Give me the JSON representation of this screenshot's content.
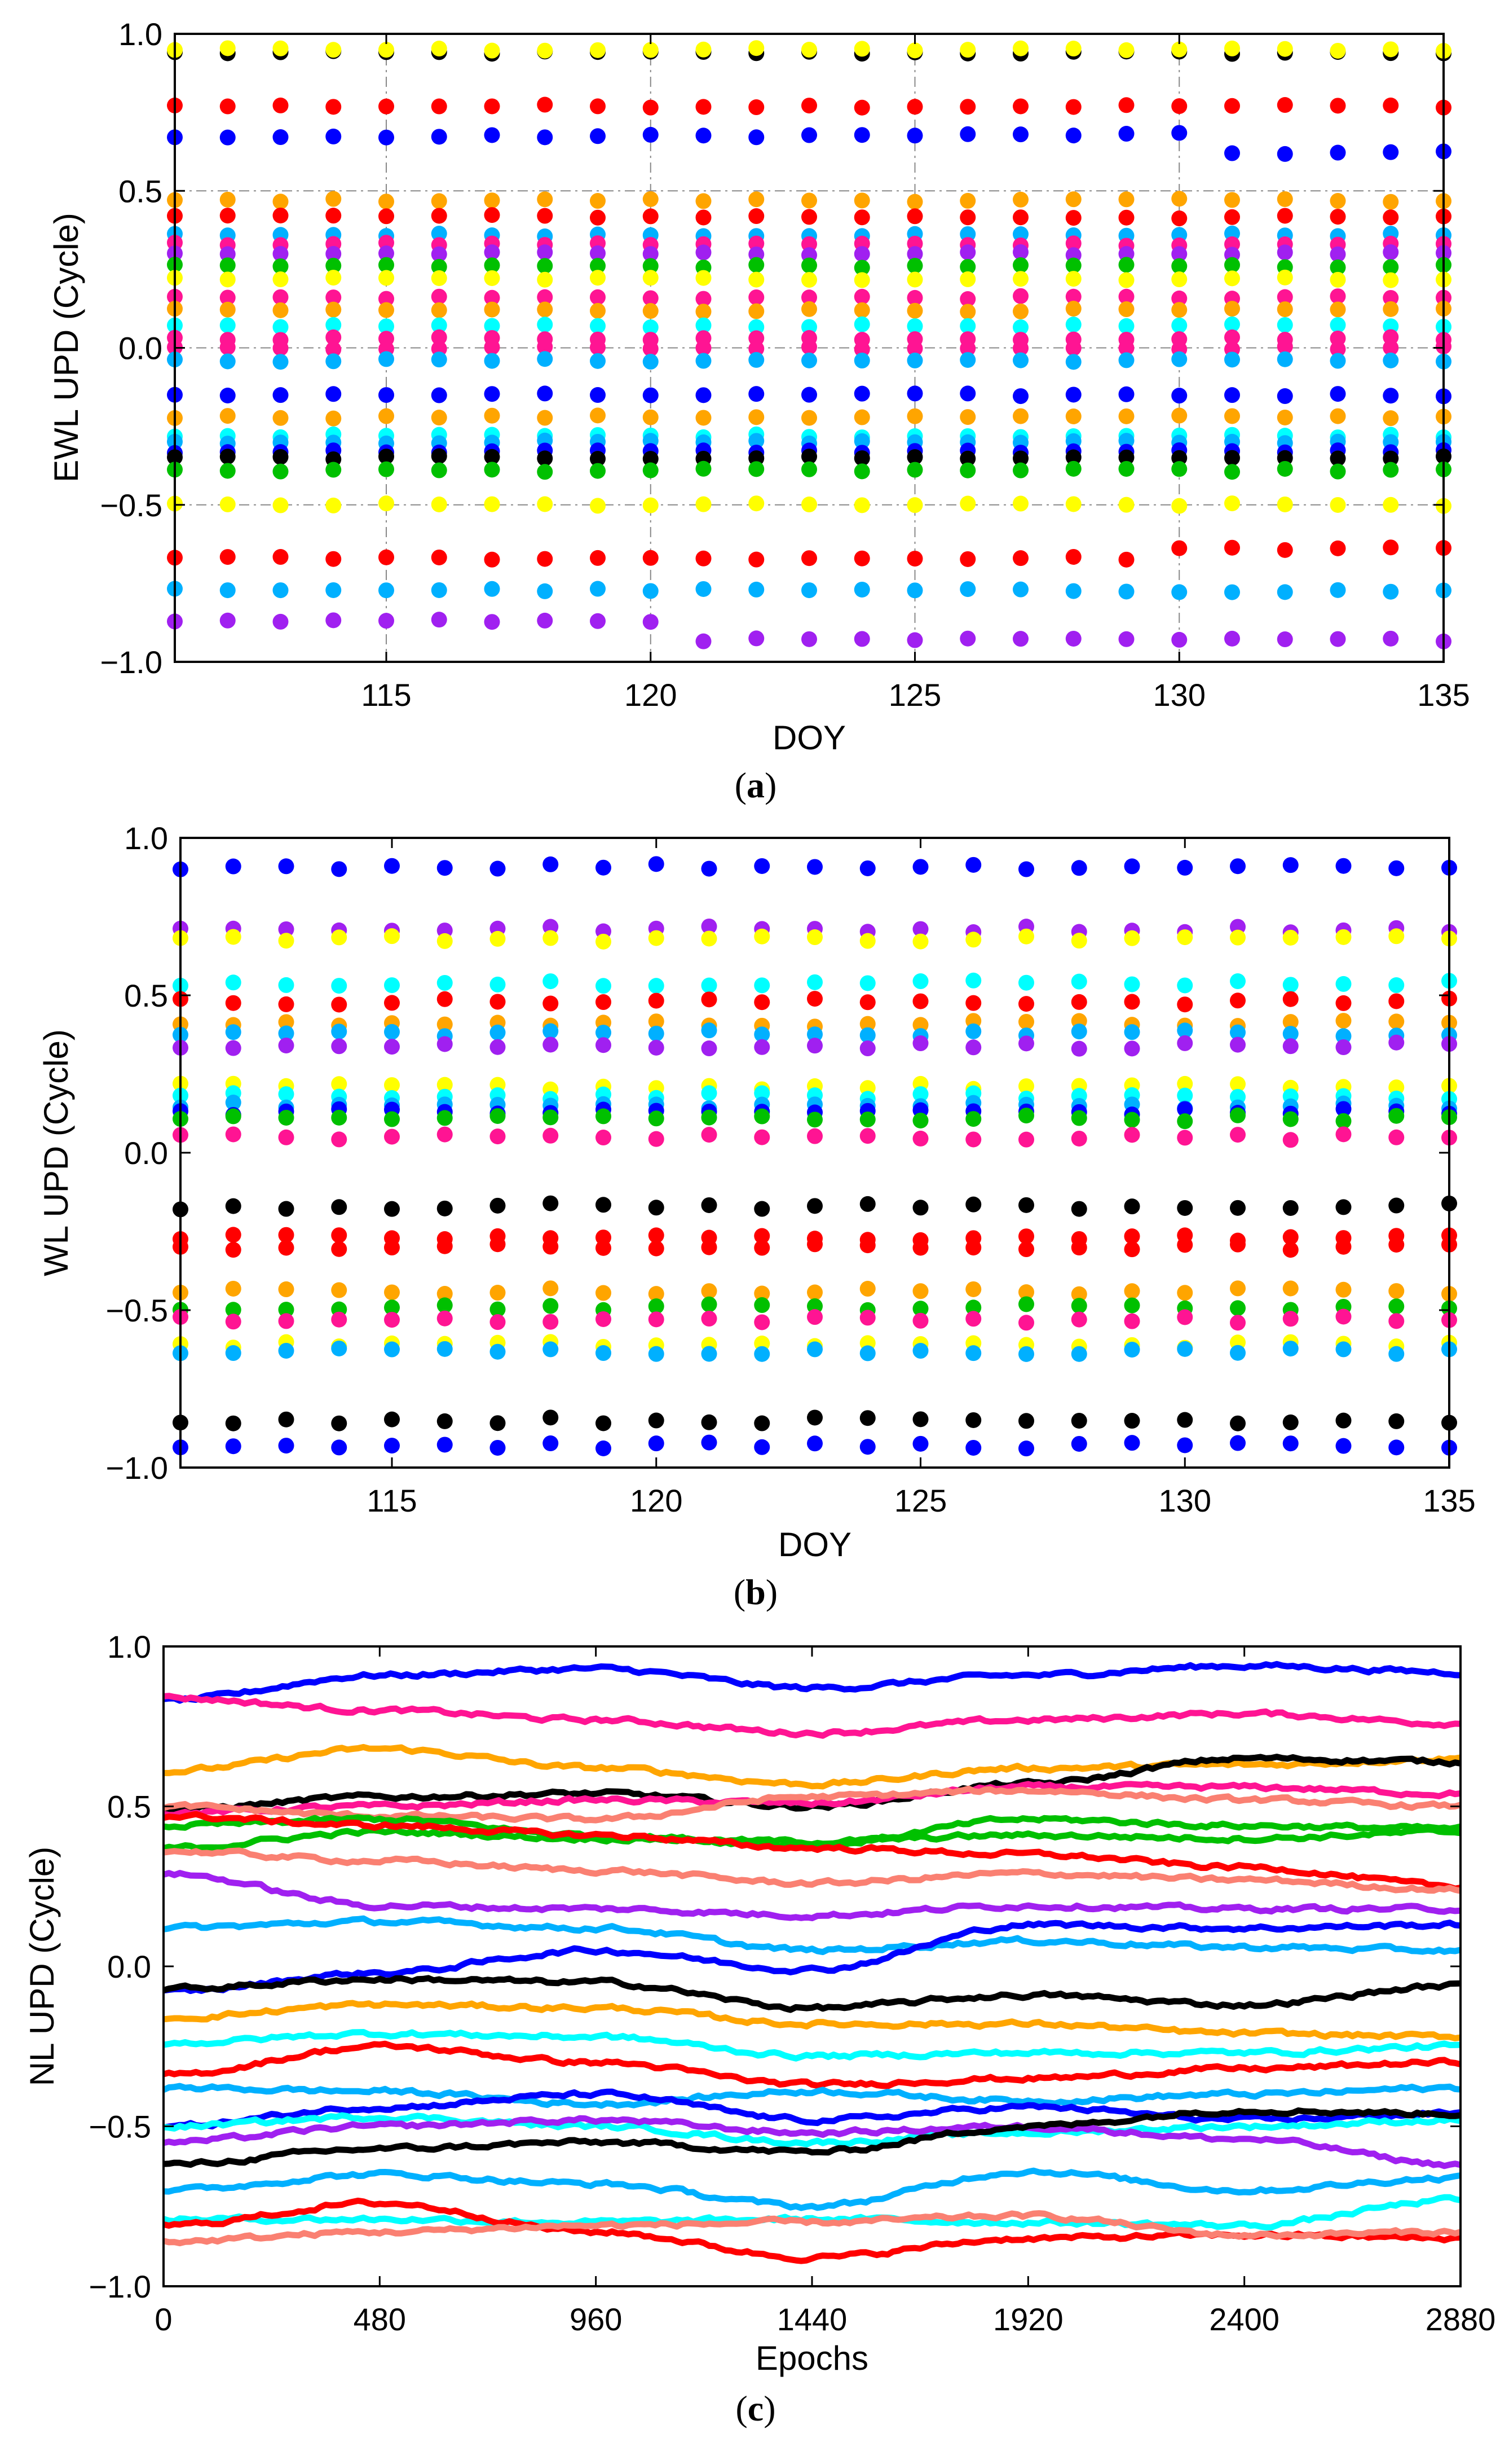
{
  "chart_data": [
    {
      "type": "scatter",
      "caption": "(a)",
      "caption_letter": "a",
      "xlabel": "DOY",
      "ylabel": "EWL UPD (Cycle)",
      "xlim": [
        111,
        135
      ],
      "ylim": [
        -1.0,
        1.0
      ],
      "xticks": [
        115,
        120,
        125,
        130,
        135
      ],
      "xtick_labels": [
        "115",
        "120",
        "125",
        "130",
        "135"
      ],
      "yticks": [
        -1.0,
        -0.5,
        0.0,
        0.5,
        1.0
      ],
      "ytick_labels": [
        "−1.0",
        "−0.5",
        "0.0",
        "0.5",
        "1.0"
      ],
      "grid": true,
      "x": [
        111,
        112,
        113,
        114,
        115,
        116,
        117,
        118,
        119,
        120,
        121,
        122,
        123,
        124,
        125,
        126,
        127,
        128,
        129,
        130,
        131,
        132,
        133,
        134,
        135
      ],
      "series": [
        {
          "name": "black-1",
          "color": "#000000",
          "base": 0.94,
          "jitter": 0.005
        },
        {
          "name": "yellow-1",
          "color": "#ffff00",
          "base": 0.95,
          "jitter": 0.005
        },
        {
          "name": "red-1",
          "color": "#ff0000",
          "base": 0.77,
          "jitter": 0.005
        },
        {
          "name": "blue-1",
          "color": "#0000ff",
          "base": 0.67,
          "drift": 0.005,
          "step_at": 131,
          "step": -0.06
        },
        {
          "name": "orange-1",
          "color": "#ffa500",
          "base": 0.47,
          "jitter": 0.005
        },
        {
          "name": "red-2",
          "color": "#ff0000",
          "base": 0.42,
          "drift": -0.002
        },
        {
          "name": "skyblue-1",
          "color": "#00b0ff",
          "base": 0.36,
          "jitter": 0.005
        },
        {
          "name": "magenta-1",
          "color": "#ff1493",
          "base": 0.33,
          "jitter": 0.005
        },
        {
          "name": "purple-1",
          "color": "#a020f0",
          "base": 0.3,
          "jitter": 0.005
        },
        {
          "name": "green-1",
          "color": "#00c000",
          "base": 0.26,
          "jitter": 0.005
        },
        {
          "name": "yellow-2",
          "color": "#ffff00",
          "base": 0.22,
          "jitter": 0.005
        },
        {
          "name": "magenta-2",
          "color": "#ff1493",
          "base": 0.16,
          "jitter": 0.005
        },
        {
          "name": "orange-2",
          "color": "#ffa500",
          "base": 0.12,
          "jitter": 0.005
        },
        {
          "name": "cyan-1",
          "color": "#00ffff",
          "base": 0.07,
          "jitter": 0.005
        },
        {
          "name": "magenta-3",
          "color": "#ff1493",
          "base": 0.03,
          "jitter": 0.005
        },
        {
          "name": "magenta-4",
          "color": "#ff1493",
          "base": 0.0,
          "jitter": 0.005
        },
        {
          "name": "skyblue-2",
          "color": "#00b0ff",
          "base": -0.04,
          "jitter": 0.005
        },
        {
          "name": "blue-2",
          "color": "#0000ff",
          "base": -0.15,
          "jitter": 0.005
        },
        {
          "name": "orange-3",
          "color": "#ffa500",
          "base": -0.22,
          "jitter": 0.005
        },
        {
          "name": "cyan-2",
          "color": "#00ffff",
          "base": -0.28,
          "jitter": 0.005
        },
        {
          "name": "skyblue-3",
          "color": "#00b0ff",
          "base": -0.3,
          "jitter": 0.005
        },
        {
          "name": "blue-3",
          "color": "#0000ff",
          "base": -0.33,
          "jitter": 0.005
        },
        {
          "name": "black-2",
          "color": "#000000",
          "base": -0.35,
          "jitter": 0.005
        },
        {
          "name": "green-2",
          "color": "#00c000",
          "base": -0.39,
          "jitter": 0.005
        },
        {
          "name": "yellow-3",
          "color": "#ffff00",
          "base": -0.5,
          "jitter": 0.005
        },
        {
          "name": "red-3",
          "color": "#ff0000",
          "base": -0.67,
          "step_at": 130,
          "step": 0.03
        },
        {
          "name": "skyblue-4",
          "color": "#00b0ff",
          "base": -0.77,
          "drift": -0.002
        },
        {
          "name": "purple-2",
          "color": "#a020f0",
          "base": -0.87,
          "step_at": 121,
          "step": -0.06
        }
      ]
    },
    {
      "type": "scatter",
      "caption": "(b)",
      "caption_letter": "b",
      "xlabel": "DOY",
      "ylabel": "WL UPD (Cycle)",
      "xlim": [
        111,
        135
      ],
      "ylim": [
        -1.0,
        1.0
      ],
      "xticks": [
        115,
        120,
        125,
        130,
        135
      ],
      "xtick_labels": [
        "115",
        "120",
        "125",
        "130",
        "135"
      ],
      "yticks": [
        -1.0,
        -0.5,
        0.0,
        0.5,
        1.0
      ],
      "ytick_labels": [
        "−1.0",
        "−0.5",
        "0.0",
        "0.5",
        "1.0"
      ],
      "grid": false,
      "x": [
        111,
        112,
        113,
        114,
        115,
        116,
        117,
        118,
        119,
        120,
        121,
        122,
        123,
        124,
        125,
        126,
        127,
        128,
        129,
        130,
        131,
        132,
        133,
        134,
        135
      ],
      "series": [
        {
          "name": "blue-1",
          "color": "#0000ff",
          "base": 0.91,
          "jitter": 0.01
        },
        {
          "name": "purple-1",
          "color": "#a020f0",
          "base": 0.71,
          "jitter": 0.01
        },
        {
          "name": "yellow-1",
          "color": "#ffff00",
          "base": 0.68,
          "jitter": 0.01
        },
        {
          "name": "cyan-1",
          "color": "#00ffff",
          "base": 0.54,
          "jitter": 0.01
        },
        {
          "name": "red-1",
          "color": "#ff0000",
          "base": 0.48,
          "jitter": 0.01
        },
        {
          "name": "orange-1",
          "color": "#ffa500",
          "base": 0.41,
          "jitter": 0.01
        },
        {
          "name": "skyblue-1",
          "color": "#00b0ff",
          "base": 0.38,
          "jitter": 0.01
        },
        {
          "name": "purple-2",
          "color": "#a020f0",
          "base": 0.34,
          "jitter": 0.01
        },
        {
          "name": "yellow-2",
          "color": "#ffff00",
          "base": 0.21,
          "jitter": 0.01
        },
        {
          "name": "cyan-2",
          "color": "#00ffff",
          "base": 0.18,
          "jitter": 0.01
        },
        {
          "name": "skyblue-2",
          "color": "#00b0ff",
          "base": 0.15,
          "jitter": 0.01
        },
        {
          "name": "blue-2",
          "color": "#0000ff",
          "base": 0.13,
          "jitter": 0.01
        },
        {
          "name": "green-1",
          "color": "#00c000",
          "base": 0.11,
          "jitter": 0.01
        },
        {
          "name": "magenta-1",
          "color": "#ff1493",
          "base": 0.05,
          "jitter": 0.01
        },
        {
          "name": "black-1",
          "color": "#000000",
          "base": -0.17,
          "jitter": 0.01
        },
        {
          "name": "red-2",
          "color": "#ff0000",
          "base": -0.27,
          "jitter": 0.01
        },
        {
          "name": "red-3",
          "color": "#ff0000",
          "base": -0.3,
          "jitter": 0.01
        },
        {
          "name": "orange-2",
          "color": "#ffa500",
          "base": -0.44,
          "jitter": 0.01
        },
        {
          "name": "green-2",
          "color": "#00c000",
          "base": -0.49,
          "jitter": 0.01
        },
        {
          "name": "magenta-2",
          "color": "#ff1493",
          "base": -0.53,
          "jitter": 0.01
        },
        {
          "name": "yellow-3",
          "color": "#ffff00",
          "base": -0.61,
          "jitter": 0.01
        },
        {
          "name": "skyblue-3",
          "color": "#00b0ff",
          "base": -0.63,
          "jitter": 0.01
        },
        {
          "name": "black-2",
          "color": "#000000",
          "base": -0.85,
          "jitter": 0.01
        },
        {
          "name": "blue-3",
          "color": "#0000ff",
          "base": -0.93,
          "jitter": 0.01
        }
      ]
    },
    {
      "type": "line",
      "caption": "(c)",
      "caption_letter": "c",
      "xlabel": "Epochs",
      "ylabel": "NL UPD (Cycle)",
      "xlim": [
        0,
        2880
      ],
      "ylim": [
        -1.0,
        1.0
      ],
      "xticks": [
        0,
        480,
        960,
        1440,
        1920,
        2400,
        2880
      ],
      "xtick_labels": [
        "0",
        "480",
        "960",
        "1440",
        "1920",
        "2400",
        "2880"
      ],
      "yticks": [
        -1.0,
        -0.5,
        0.0,
        0.5,
        1.0
      ],
      "ytick_labels": [
        "−1.0",
        "−0.5",
        "0.0",
        "0.5",
        "1.0"
      ],
      "grid": false,
      "knots_x": [
        0,
        480,
        960,
        1440,
        1920,
        2400,
        2880
      ],
      "series": [
        {
          "name": "blue-1",
          "color": "#0000ff",
          "values": [
            0.83,
            0.91,
            0.93,
            0.87,
            0.91,
            0.94,
            0.92
          ]
        },
        {
          "name": "magenta-1",
          "color": "#ff1493",
          "values": [
            0.84,
            0.8,
            0.77,
            0.73,
            0.77,
            0.79,
            0.76
          ]
        },
        {
          "name": "orange-1",
          "color": "#ffa500",
          "values": [
            0.61,
            0.68,
            0.62,
            0.57,
            0.62,
            0.63,
            0.65
          ]
        },
        {
          "name": "black-1",
          "color": "#000000",
          "values": [
            0.49,
            0.53,
            0.54,
            0.5,
            0.57,
            0.65,
            0.64
          ]
        },
        {
          "name": "pink-2",
          "color": "#ff1493",
          "values": [
            0.48,
            0.5,
            0.52,
            0.51,
            0.56,
            0.56,
            0.54
          ]
        },
        {
          "name": "salmon-1",
          "color": "#fa8072",
          "values": [
            0.5,
            0.47,
            0.46,
            0.53,
            0.55,
            0.52,
            0.5
          ]
        },
        {
          "name": "green-1",
          "color": "#00c000",
          "values": [
            0.44,
            0.46,
            0.41,
            0.38,
            0.46,
            0.44,
            0.43
          ]
        },
        {
          "name": "green-2",
          "color": "#00c000",
          "values": [
            0.37,
            0.42,
            0.4,
            0.39,
            0.41,
            0.4,
            0.42
          ]
        },
        {
          "name": "red-1",
          "color": "#ff0000",
          "values": [
            0.47,
            0.44,
            0.41,
            0.37,
            0.35,
            0.31,
            0.25
          ]
        },
        {
          "name": "salmon-2",
          "color": "#fa8072",
          "values": [
            0.36,
            0.33,
            0.3,
            0.26,
            0.29,
            0.27,
            0.24
          ]
        },
        {
          "name": "purple-1",
          "color": "#a020f0",
          "values": [
            0.29,
            0.19,
            0.18,
            0.16,
            0.19,
            0.18,
            0.18
          ]
        },
        {
          "name": "skyblue-1",
          "color": "#00b0ff",
          "values": [
            0.12,
            0.14,
            0.12,
            0.05,
            0.08,
            0.06,
            0.05
          ]
        },
        {
          "name": "blue-2",
          "color": "#0000ff",
          "values": [
            -0.08,
            -0.02,
            0.05,
            -0.01,
            0.13,
            0.12,
            0.13
          ]
        },
        {
          "name": "black-2",
          "color": "#000000",
          "values": [
            -0.07,
            -0.04,
            -0.05,
            -0.13,
            -0.09,
            -0.12,
            -0.06
          ]
        },
        {
          "name": "orange-2",
          "color": "#ffa500",
          "values": [
            -0.16,
            -0.12,
            -0.13,
            -0.18,
            -0.18,
            -0.21,
            -0.22
          ]
        },
        {
          "name": "cyan-1",
          "color": "#00ffff",
          "values": [
            -0.24,
            -0.21,
            -0.22,
            -0.28,
            -0.27,
            -0.27,
            -0.25
          ]
        },
        {
          "name": "red-2",
          "color": "#ff0000",
          "values": [
            -0.34,
            -0.25,
            -0.3,
            -0.37,
            -0.35,
            -0.32,
            -0.3
          ]
        },
        {
          "name": "skyblue-2",
          "color": "#00b0ff",
          "values": [
            -0.38,
            -0.39,
            -0.43,
            -0.39,
            -0.42,
            -0.4,
            -0.38
          ]
        },
        {
          "name": "blue-3",
          "color": "#0000ff",
          "values": [
            -0.5,
            -0.44,
            -0.4,
            -0.48,
            -0.44,
            -0.48,
            -0.46
          ]
        },
        {
          "name": "cyan-2",
          "color": "#00ffff",
          "values": [
            -0.5,
            -0.47,
            -0.5,
            -0.55,
            -0.52,
            -0.5,
            -0.48
          ]
        },
        {
          "name": "purple-2",
          "color": "#a020f0",
          "values": [
            -0.55,
            -0.5,
            -0.48,
            -0.52,
            -0.5,
            -0.54,
            -0.62
          ]
        },
        {
          "name": "black-3",
          "color": "#000000",
          "values": [
            -0.62,
            -0.57,
            -0.55,
            -0.58,
            -0.5,
            -0.45,
            -0.46
          ]
        },
        {
          "name": "skyblue-3",
          "color": "#00b0ff",
          "values": [
            -0.7,
            -0.65,
            -0.68,
            -0.75,
            -0.64,
            -0.7,
            -0.66
          ]
        },
        {
          "name": "cyan-3",
          "color": "#00ffff",
          "values": [
            -0.79,
            -0.79,
            -0.8,
            -0.79,
            -0.8,
            -0.81,
            -0.73
          ]
        },
        {
          "name": "red-3",
          "color": "#ff0000",
          "values": [
            -0.81,
            -0.74,
            -0.83,
            -0.91,
            -0.85,
            -0.84,
            -0.85
          ]
        },
        {
          "name": "salmon-3",
          "color": "#fa8072",
          "values": [
            -0.86,
            -0.83,
            -0.81,
            -0.8,
            -0.78,
            -0.84,
            -0.83
          ]
        }
      ]
    }
  ]
}
